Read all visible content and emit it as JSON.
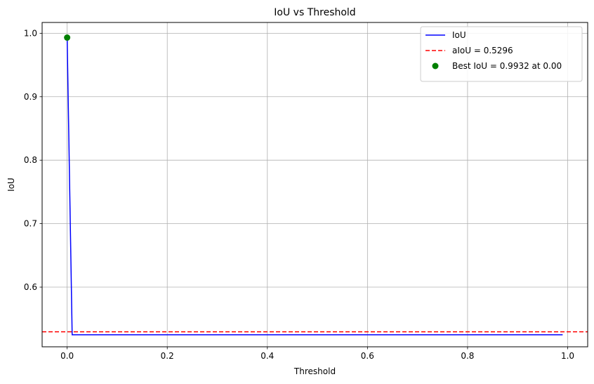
{
  "chart_data": {
    "type": "line",
    "title": "IoU vs Threshold",
    "xlabel": "Threshold",
    "ylabel": "IoU",
    "xlim": [
      -0.05,
      1.04
    ],
    "ylim": [
      0.506,
      1.017
    ],
    "xticks": [
      0.0,
      0.2,
      0.4,
      0.6,
      0.8,
      1.0
    ],
    "xtick_labels": [
      "0.0",
      "0.2",
      "0.4",
      "0.6",
      "0.8",
      "1.0"
    ],
    "yticks": [
      0.6,
      0.7,
      0.8,
      0.9,
      1.0
    ],
    "ytick_labels": [
      "0.6",
      "0.7",
      "0.8",
      "0.9",
      "1.0"
    ],
    "grid": true,
    "legend_position": "top-right",
    "series": [
      {
        "name": "IoU",
        "kind": "line",
        "color": "#0000ff",
        "x": [
          0.0,
          0.01,
          0.99
        ],
        "y": [
          0.9932,
          0.525,
          0.525
        ]
      },
      {
        "name": "aIoU = 0.5296",
        "kind": "hline",
        "color": "#ff0000",
        "y": 0.5296
      },
      {
        "name": "Best IoU = 0.9932 at 0.00",
        "kind": "point",
        "color": "#008000",
        "x": 0.0,
        "y": 0.9932
      }
    ]
  }
}
